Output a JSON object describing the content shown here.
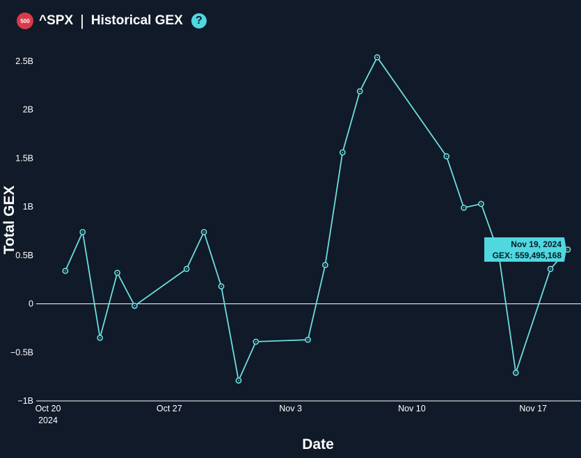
{
  "header": {
    "badge": "500",
    "symbol": "^SPX",
    "separator": "|",
    "title": "Historical GEX",
    "help_icon": "?"
  },
  "colors": {
    "background": "#101a28",
    "line": "#6fdde0",
    "accent": "#4fd8e0",
    "badge": "#d83a4a",
    "zero_line": "#ffffff"
  },
  "chart_data": {
    "type": "line",
    "title": "",
    "xlabel": "Date",
    "ylabel": "Total GEX",
    "ylim": [
      -1000000000,
      2700000000
    ],
    "xlim": [
      "2024-10-20",
      "2024-11-19"
    ],
    "grid": false,
    "zero_line": true,
    "x_ticks": [
      {
        "date": "2024-10-20",
        "label": "Oct 20",
        "sublabel": "2024"
      },
      {
        "date": "2024-10-27",
        "label": "Oct 27",
        "sublabel": ""
      },
      {
        "date": "2024-11-03",
        "label": "Nov 3",
        "sublabel": ""
      },
      {
        "date": "2024-11-10",
        "label": "Nov 10",
        "sublabel": ""
      },
      {
        "date": "2024-11-17",
        "label": "Nov 17",
        "sublabel": ""
      }
    ],
    "y_ticks": [
      {
        "value": 2500000000,
        "label": "2.5B"
      },
      {
        "value": 2000000000,
        "label": "2B"
      },
      {
        "value": 1500000000,
        "label": "1.5B"
      },
      {
        "value": 1000000000,
        "label": "1B"
      },
      {
        "value": 500000000,
        "label": "0.5B"
      },
      {
        "value": 0,
        "label": "0"
      },
      {
        "value": -500000000,
        "label": "−0.5B"
      },
      {
        "value": -1000000000,
        "label": "−1B"
      }
    ],
    "series": [
      {
        "points": [
          {
            "x": "2024-10-21",
            "y": 340000000
          },
          {
            "x": "2024-10-22",
            "y": 740000000
          },
          {
            "x": "2024-10-23",
            "y": -350000000
          },
          {
            "x": "2024-10-24",
            "y": 320000000
          },
          {
            "x": "2024-10-25",
            "y": -20000000
          },
          {
            "x": "2024-10-28",
            "y": 360000000
          },
          {
            "x": "2024-10-29",
            "y": 740000000
          },
          {
            "x": "2024-10-30",
            "y": 180000000
          },
          {
            "x": "2024-10-31",
            "y": -790000000
          },
          {
            "x": "2024-11-01",
            "y": -390000000
          },
          {
            "x": "2024-11-04",
            "y": -370000000
          },
          {
            "x": "2024-11-05",
            "y": 400000000
          },
          {
            "x": "2024-11-06",
            "y": 1560000000
          },
          {
            "x": "2024-11-07",
            "y": 2190000000
          },
          {
            "x": "2024-11-08",
            "y": 2540000000
          },
          {
            "x": "2024-11-12",
            "y": 1520000000
          },
          {
            "x": "2024-11-13",
            "y": 990000000
          },
          {
            "x": "2024-11-14",
            "y": 1030000000
          },
          {
            "x": "2024-11-15",
            "y": 530000000
          },
          {
            "x": "2024-11-16",
            "y": -710000000
          },
          {
            "x": "2024-11-18",
            "y": 360000000
          },
          {
            "x": "2024-11-19",
            "y": 559495168
          }
        ]
      }
    ],
    "tooltip": {
      "date": "Nov 19, 2024",
      "label": "GEX: 559,495,168"
    }
  }
}
